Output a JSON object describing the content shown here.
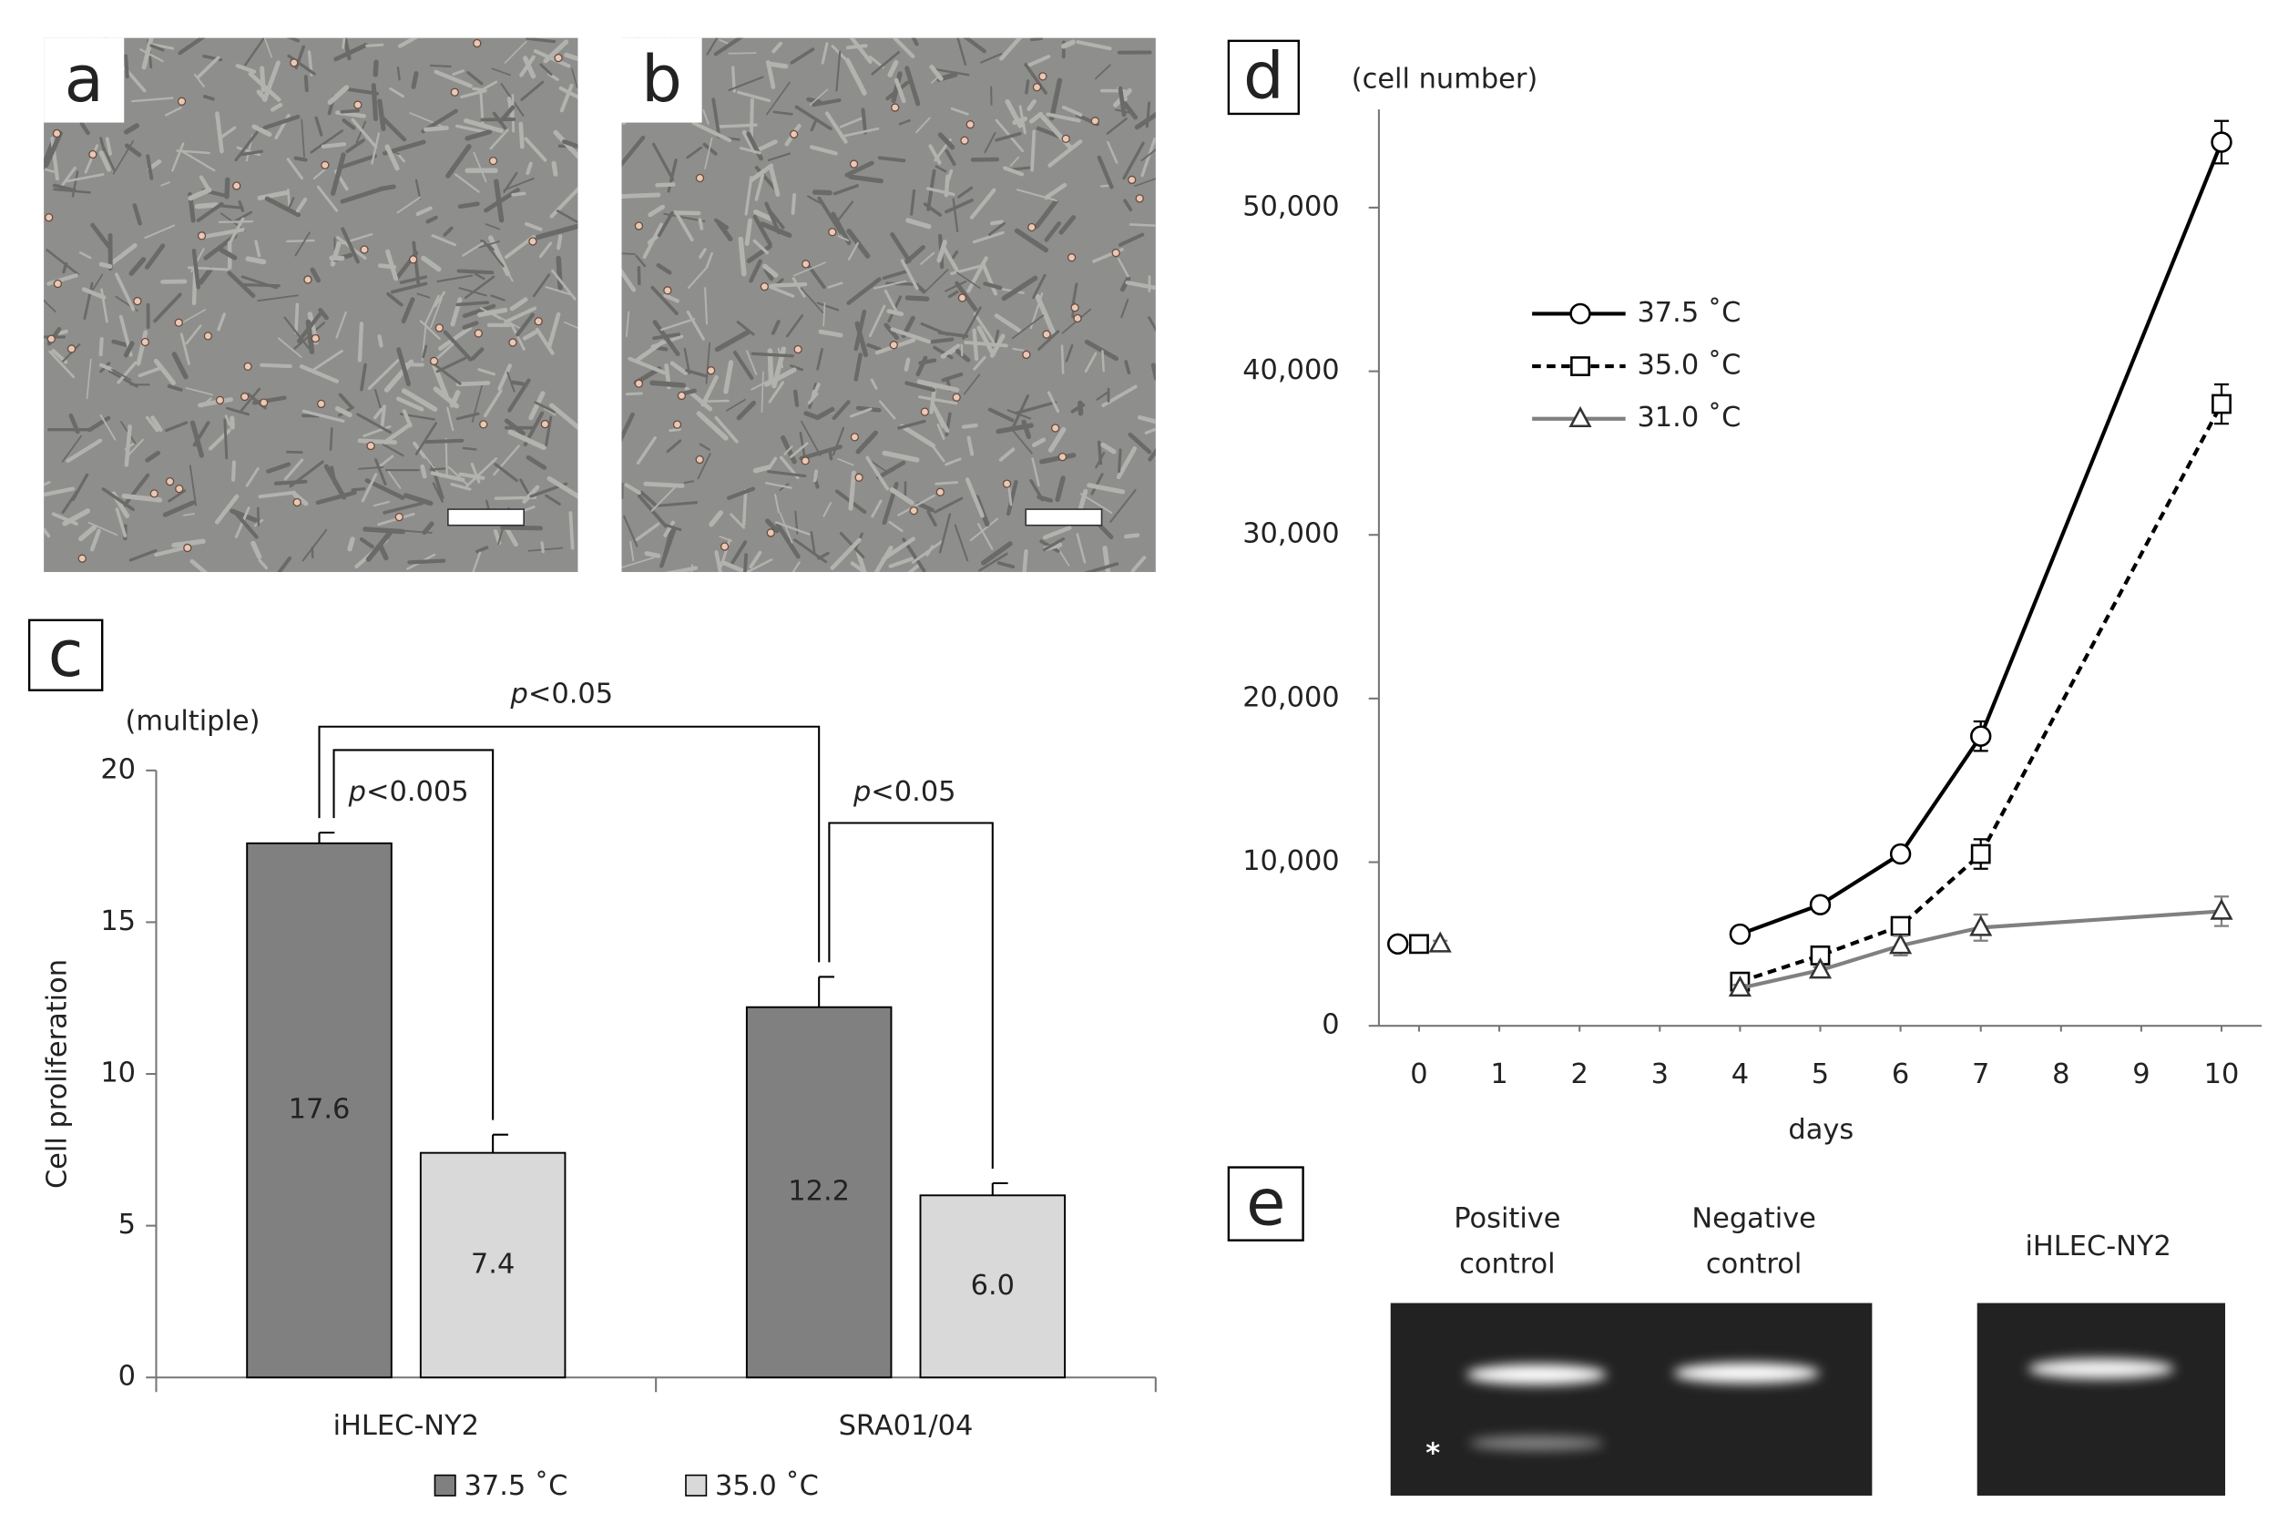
{
  "panel_labels": [
    "a",
    "b",
    "c",
    "d",
    "e"
  ],
  "chart_data": [
    {
      "type": "bar",
      "ylabel": "Cell proliferation",
      "yunit": "(multiple)",
      "categories": [
        "iHLEC-NY2",
        "SRA01/04"
      ],
      "series": [
        {
          "name": "37.5 ˚C",
          "color": "#808080",
          "values": [
            17.6,
            12.2
          ],
          "value_labels": [
            "17.6",
            "12.2"
          ],
          "errors": [
            0.35,
            1.0
          ]
        },
        {
          "name": "35.0 ˚C",
          "color": "#d9d9d9",
          "values": [
            7.4,
            6.0
          ],
          "value_labels": [
            "7.4",
            "6.0"
          ],
          "errors": [
            0.6,
            0.4
          ]
        }
      ],
      "ylim": [
        0,
        20
      ],
      "yticks": [
        0,
        5,
        10,
        15,
        20
      ],
      "annotations": [
        {
          "italic": "p",
          "text": "<0.05"
        },
        {
          "italic": "p",
          "text": "<0.005"
        },
        {
          "italic": "p",
          "text": "<0.05"
        }
      ]
    },
    {
      "type": "line",
      "xlabel": "days",
      "yunit": "(cell number)",
      "x": [
        0,
        4,
        5,
        6,
        7,
        10
      ],
      "series": [
        {
          "name": "37.5 ˚C",
          "color": "#000000",
          "marker": "circle",
          "dashed": false,
          "values": [
            5000,
            5600,
            7400,
            10500,
            17700,
            54000
          ],
          "errors": [
            200,
            300,
            200,
            200,
            900,
            1300
          ]
        },
        {
          "name": "35.0 ˚C",
          "color": "#000000",
          "marker": "square",
          "dashed": true,
          "values": [
            5000,
            2700,
            4300,
            6100,
            10500,
            38000
          ],
          "errors": [
            200,
            200,
            200,
            200,
            900,
            1200
          ]
        },
        {
          "name": "31.0 ˚C",
          "color": "#808080",
          "marker": "triangle",
          "dashed": false,
          "values": [
            5000,
            2300,
            3400,
            4900,
            6000,
            7000
          ],
          "errors": [
            200,
            200,
            200,
            600,
            800,
            900
          ]
        }
      ],
      "xlim": [
        -0.5,
        10.5
      ],
      "xticks": [
        0,
        1,
        2,
        3,
        4,
        5,
        6,
        7,
        8,
        9,
        10
      ],
      "ylim": [
        0,
        56000
      ],
      "yticks": [
        0,
        {
          "value": 10000,
          "label": "10,000"
        },
        {
          "value": 20000,
          "label": "20,000"
        },
        {
          "value": 30000,
          "label": "30,000"
        },
        {
          "value": 40000,
          "label": "40,000"
        },
        {
          "value": 50000,
          "label": "50,000"
        }
      ]
    }
  ],
  "gel": {
    "lanes": [
      [
        "Positive",
        "control"
      ],
      [
        "Negative",
        "control"
      ],
      [
        "iHLEC-NY2"
      ]
    ],
    "marker": "*"
  }
}
